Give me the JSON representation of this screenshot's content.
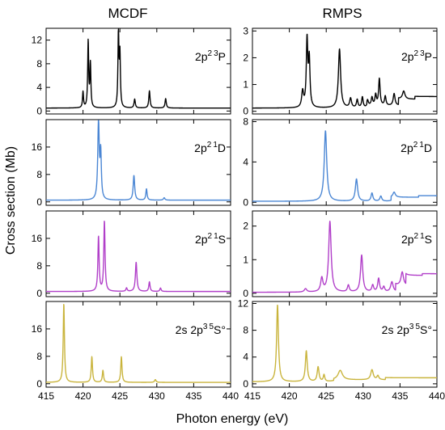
{
  "figure": {
    "column_titles": [
      "MCDF",
      "RMPS"
    ],
    "ylabel": "Cross section (Mb)",
    "xlabel": "Photon energy (eV)"
  },
  "chart_data": [
    {
      "type": "line",
      "column": "MCDF",
      "row": 0,
      "label": {
        "base": "2p",
        "sup1": "2",
        "sup2": "3",
        "term": "P",
        "suffix": ""
      },
      "color": "#000000",
      "xlim": [
        415,
        440
      ],
      "ylim": [
        -0.5,
        14
      ],
      "yticks": [
        0,
        4,
        8,
        12
      ],
      "xticks": [
        415,
        420,
        425,
        430,
        435,
        440
      ],
      "baseline": 0.5,
      "peaks": [
        [
          420.0,
          2.7,
          0.08
        ],
        [
          420.7,
          11.2,
          0.08
        ],
        [
          421.0,
          7.3,
          0.08
        ],
        [
          424.8,
          12.8,
          0.08
        ],
        [
          425.0,
          8.7,
          0.08
        ],
        [
          427.0,
          1.5,
          0.1
        ],
        [
          429.0,
          2.9,
          0.1
        ],
        [
          431.2,
          1.6,
          0.1
        ]
      ]
    },
    {
      "type": "line",
      "column": "RMPS",
      "row": 0,
      "label": {
        "base": "2p",
        "sup1": "2",
        "sup2": "3",
        "term": "P",
        "suffix": ""
      },
      "color": "#000000",
      "xlim": [
        415,
        440
      ],
      "ylim": [
        -0.1,
        3.1
      ],
      "yticks": [
        0,
        1,
        2,
        3
      ],
      "xticks": [
        415,
        420,
        425,
        430,
        435,
        440
      ],
      "baseline": 0.12,
      "peaks": [
        [
          421.8,
          0.6,
          0.15
        ],
        [
          422.4,
          2.5,
          0.12
        ],
        [
          422.7,
          1.75,
          0.12
        ],
        [
          426.8,
          2.2,
          0.18
        ],
        [
          428.3,
          0.35,
          0.15
        ],
        [
          429.2,
          0.3,
          0.12
        ],
        [
          429.9,
          0.4,
          0.12
        ],
        [
          430.6,
          0.2,
          0.12
        ],
        [
          431.2,
          0.3,
          0.12
        ],
        [
          431.7,
          0.4,
          0.12
        ],
        [
          432.2,
          1.0,
          0.12
        ],
        [
          433.0,
          0.35,
          0.12
        ],
        [
          434.2,
          0.45,
          0.15
        ],
        [
          435.5,
          0.3,
          0.2
        ]
      ],
      "steps": [
        [
          430.5,
          0.08
        ],
        [
          434.8,
          0.25
        ],
        [
          437.0,
          0.1
        ]
      ]
    },
    {
      "type": "line",
      "column": "MCDF",
      "row": 1,
      "label": {
        "base": "2p",
        "sup1": "2",
        "sup2": "1",
        "term": "D",
        "suffix": ""
      },
      "color": "#4a86d4",
      "xlim": [
        415,
        440
      ],
      "ylim": [
        -1,
        24
      ],
      "yticks": [
        0,
        8,
        16
      ],
      "xticks": [
        415,
        420,
        425,
        430,
        435,
        440
      ],
      "baseline": 0.5,
      "peaks": [
        [
          422.1,
          23.0,
          0.12
        ],
        [
          422.4,
          13.0,
          0.1
        ],
        [
          426.9,
          7.2,
          0.12
        ],
        [
          428.6,
          3.3,
          0.1
        ],
        [
          431.0,
          0.7,
          0.12
        ]
      ]
    },
    {
      "type": "line",
      "column": "RMPS",
      "row": 1,
      "label": {
        "base": "2p",
        "sup1": "2",
        "sup2": "1",
        "term": "D",
        "suffix": ""
      },
      "color": "#4a86d4",
      "xlim": [
        415,
        440
      ],
      "ylim": [
        -0.3,
        8.2
      ],
      "yticks": [
        0,
        4,
        8
      ],
      "xticks": [
        415,
        420,
        425,
        430,
        435,
        440
      ],
      "baseline": 0.1,
      "peaks": [
        [
          424.9,
          7.0,
          0.2
        ],
        [
          429.1,
          2.2,
          0.18
        ],
        [
          431.2,
          0.8,
          0.15
        ],
        [
          432.4,
          0.5,
          0.15
        ],
        [
          434.2,
          0.5,
          0.2
        ]
      ],
      "steps": [
        [
          433.8,
          0.4
        ],
        [
          437.5,
          0.15
        ]
      ]
    },
    {
      "type": "line",
      "column": "MCDF",
      "row": 2,
      "label": {
        "base": "2p",
        "sup1": "2",
        "sup2": "1",
        "term": "S",
        "suffix": ""
      },
      "color": "#b13fc9",
      "xlim": [
        415,
        440
      ],
      "ylim": [
        -1,
        24
      ],
      "yticks": [
        0,
        8,
        16
      ],
      "xticks": [
        415,
        420,
        425,
        430,
        435,
        440
      ],
      "baseline": 0.5,
      "peaks": [
        [
          422.1,
          16.0,
          0.1
        ],
        [
          422.9,
          20.5,
          0.1
        ],
        [
          425.9,
          1.0,
          0.1
        ],
        [
          427.2,
          8.5,
          0.12
        ],
        [
          429.0,
          2.8,
          0.1
        ],
        [
          430.5,
          1.0,
          0.1
        ]
      ]
    },
    {
      "type": "line",
      "column": "RMPS",
      "row": 2,
      "label": {
        "base": "2p",
        "sup1": "2",
        "sup2": "1",
        "term": "S",
        "suffix": ""
      },
      "color": "#b13fc9",
      "xlim": [
        415,
        440
      ],
      "ylim": [
        -0.1,
        2.45
      ],
      "yticks": [
        0,
        1,
        2
      ],
      "xticks": [
        415,
        420,
        425,
        430,
        435,
        440
      ],
      "baseline": 0.03,
      "peaks": [
        [
          422.2,
          0.1,
          0.2
        ],
        [
          424.4,
          0.4,
          0.18
        ],
        [
          425.5,
          2.1,
          0.2
        ],
        [
          428.0,
          0.2,
          0.15
        ],
        [
          429.8,
          1.1,
          0.18
        ],
        [
          431.3,
          0.2,
          0.15
        ],
        [
          432.1,
          0.4,
          0.15
        ],
        [
          432.8,
          0.15,
          0.15
        ],
        [
          433.9,
          0.3,
          0.2
        ],
        [
          435.3,
          0.4,
          0.2
        ]
      ],
      "steps": [
        [
          434.4,
          0.2
        ],
        [
          435.8,
          0.3
        ],
        [
          438.0,
          0.05
        ]
      ]
    },
    {
      "type": "line",
      "column": "MCDF",
      "row": 3,
      "label": {
        "base": "2s 2p",
        "sup1": "3",
        "sup2": "5",
        "term": "S",
        "suffix": "°"
      },
      "color": "#c9b43c",
      "xlim": [
        415,
        440
      ],
      "ylim": [
        -1,
        24
      ],
      "yticks": [
        0,
        8,
        16
      ],
      "xticks": [
        415,
        420,
        425,
        430,
        435,
        440
      ],
      "baseline": 0.4,
      "peaks": [
        [
          417.4,
          23.0,
          0.1
        ],
        [
          421.2,
          7.5,
          0.1
        ],
        [
          422.7,
          3.5,
          0.1
        ],
        [
          425.2,
          7.5,
          0.1
        ],
        [
          429.8,
          0.8,
          0.12
        ]
      ]
    },
    {
      "type": "line",
      "column": "RMPS",
      "row": 3,
      "label": {
        "base": "2s 2p",
        "sup1": "3",
        "sup2": "5",
        "term": "S",
        "suffix": "°"
      },
      "color": "#c9b43c",
      "xlim": [
        415,
        440
      ],
      "ylim": [
        -0.5,
        12.3
      ],
      "yticks": [
        0,
        4,
        8,
        12
      ],
      "xticks": [
        415,
        420,
        425,
        430,
        435,
        440
      ],
      "baseline": 0.3,
      "peaks": [
        [
          418.4,
          11.5,
          0.15
        ],
        [
          422.3,
          4.6,
          0.15
        ],
        [
          423.9,
          2.2,
          0.15
        ],
        [
          424.7,
          1.0,
          0.12
        ],
        [
          426.9,
          1.4,
          0.35
        ],
        [
          431.2,
          1.5,
          0.2
        ],
        [
          432.0,
          0.6,
          0.15
        ]
      ],
      "steps": [
        [
          426.0,
          0.3
        ],
        [
          433.0,
          0.3
        ]
      ]
    }
  ]
}
